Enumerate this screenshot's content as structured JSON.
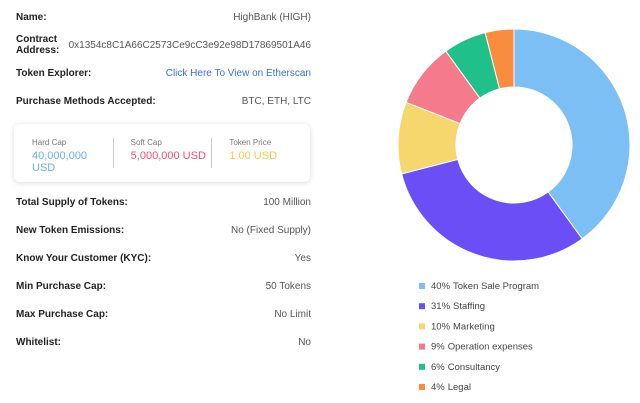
{
  "rows_top": [
    {
      "label": "Name:",
      "value": "HighBank (HIGH)"
    },
    {
      "label": "Contract Address:",
      "value": "0x1354c8C1A66C2573Ce9cC3e92e98D17869501A46"
    },
    {
      "label": "Token Explorer:",
      "value": "Click Here To View on Etherscan"
    },
    {
      "label": "Purchase Methods Accepted:",
      "value": "BTC, ETH, LTC"
    }
  ],
  "caps": [
    {
      "label": "Hard Cap",
      "value": "40,000,000 USD"
    },
    {
      "label": "Soft Cap",
      "value": "5,000,000 USD"
    },
    {
      "label": "Token Price",
      "value": "1.00 USD"
    }
  ],
  "rows_bottom": [
    {
      "label": "Total Supply of Tokens:",
      "value": "100 Million"
    },
    {
      "label": "New Token Emissions:",
      "value": "No (Fixed Supply)"
    },
    {
      "label": "Know Your Customer (KYC):",
      "value": "Yes"
    },
    {
      "label": "Min Purchase Cap:",
      "value": "50 Tokens"
    },
    {
      "label": "Max Purchase Cap:",
      "value": "No Limit"
    },
    {
      "label": "Whitelist:",
      "value": "No"
    }
  ],
  "chart_data": {
    "type": "pie",
    "categories": [
      "Token Sale Program",
      "Staffing",
      "Marketing",
      "Operation expenses",
      "Consultancy",
      "Legal"
    ],
    "values": [
      40,
      31,
      10,
      9,
      6,
      4
    ],
    "value_labels": [
      "40%",
      "31%",
      "10%",
      "9%",
      "6%",
      "4%"
    ],
    "colors": [
      "#7bbff5",
      "#6b4ef5",
      "#f5d76e",
      "#f47a8c",
      "#1fc08a",
      "#f98c3f"
    ]
  }
}
